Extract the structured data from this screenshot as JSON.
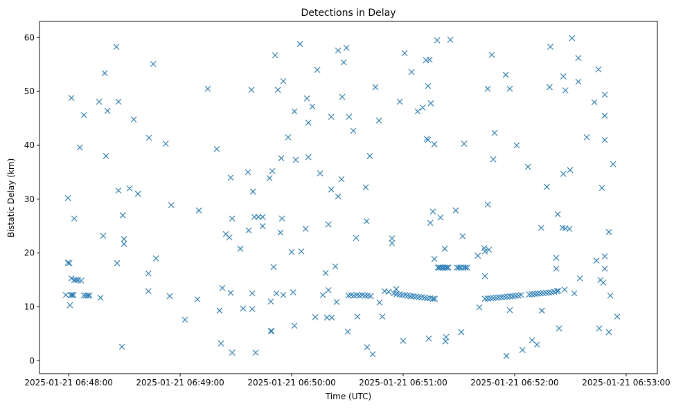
{
  "chart_data": {
    "type": "scatter",
    "title": "Detections in Delay",
    "xlabel": "Time (UTC)",
    "ylabel": "Bistatic Delay (km)",
    "x_origin": "2025-01-21 06:48:00",
    "x_unit": "seconds",
    "xlim": [
      -15.7,
      316.8
    ],
    "ylim": [
      -2.4,
      63
    ],
    "x_ticks": [
      {
        "value": 0,
        "label": "2025-01-21 06:48:00"
      },
      {
        "value": 60,
        "label": "2025-01-21 06:49:00"
      },
      {
        "value": 120,
        "label": "2025-01-21 06:50:00"
      },
      {
        "value": 180,
        "label": "2025-01-21 06:51:00"
      },
      {
        "value": 240,
        "label": "2025-01-21 06:52:00"
      },
      {
        "value": 300,
        "label": "2025-01-21 06:53:00"
      }
    ],
    "y_ticks": [
      {
        "value": 0,
        "label": "0"
      },
      {
        "value": 10,
        "label": "10"
      },
      {
        "value": 20,
        "label": "20"
      },
      {
        "value": 30,
        "label": "30"
      },
      {
        "value": 40,
        "label": "40"
      },
      {
        "value": 50,
        "label": "50"
      },
      {
        "value": 60,
        "label": "60"
      }
    ],
    "grid": false,
    "marker": "x",
    "color": "#1f77b4",
    "points": [
      [
        -0.4,
        30.2
      ],
      [
        -0.4,
        18.2
      ],
      [
        0.4,
        18.1
      ],
      [
        -1.5,
        12.2
      ],
      [
        1.1,
        12.2
      ],
      [
        1.9,
        12.2
      ],
      [
        2.6,
        12.2
      ],
      [
        0.7,
        10.3
      ],
      [
        1.5,
        15.3
      ],
      [
        3.0,
        15.0
      ],
      [
        4.1,
        15.0
      ],
      [
        5.2,
        15.0
      ],
      [
        6.7,
        14.9
      ],
      [
        1.5,
        48.8
      ],
      [
        3.0,
        26.4
      ],
      [
        6.0,
        39.6
      ],
      [
        8.2,
        45.6
      ],
      [
        8.2,
        12.1
      ],
      [
        9.3,
        12.1
      ],
      [
        10.4,
        12.1
      ],
      [
        11.2,
        12.1
      ],
      [
        16.4,
        48.1
      ],
      [
        17.1,
        11.7
      ],
      [
        18.6,
        23.2
      ],
      [
        19.4,
        53.4
      ],
      [
        20.1,
        38.0
      ],
      [
        20.9,
        46.4
      ],
      [
        25.7,
        58.3
      ],
      [
        26.8,
        48.1
      ],
      [
        26.1,
        18.1
      ],
      [
        26.8,
        31.6
      ],
      [
        29.1,
        27.0
      ],
      [
        29.8,
        22.6
      ],
      [
        29.8,
        21.7
      ],
      [
        28.7,
        2.6
      ],
      [
        32.8,
        32.0
      ],
      [
        35.0,
        44.8
      ],
      [
        37.3,
        31.0
      ],
      [
        43.2,
        41.4
      ],
      [
        42.9,
        16.2
      ],
      [
        42.9,
        12.9
      ],
      [
        45.5,
        55.1
      ],
      [
        47.0,
        19.0
      ],
      [
        52.2,
        40.3
      ],
      [
        54.4,
        12.0
      ],
      [
        55.2,
        28.9
      ],
      [
        62.6,
        7.6
      ],
      [
        69.3,
        11.4
      ],
      [
        70.1,
        27.9
      ],
      [
        74.9,
        50.5
      ],
      [
        79.7,
        39.3
      ],
      [
        81.2,
        9.3
      ],
      [
        82.0,
        3.2
      ],
      [
        82.7,
        13.5
      ],
      [
        84.6,
        23.5
      ],
      [
        86.5,
        22.9
      ],
      [
        87.2,
        34.0
      ],
      [
        87.2,
        12.6
      ],
      [
        88.0,
        1.5
      ],
      [
        88.0,
        26.4
      ],
      [
        92.4,
        20.8
      ],
      [
        93.9,
        9.7
      ],
      [
        96.5,
        35.0
      ],
      [
        96.9,
        24.2
      ],
      [
        98.4,
        50.3
      ],
      [
        98.8,
        12.5
      ],
      [
        98.8,
        9.6
      ],
      [
        99.2,
        31.4
      ],
      [
        99.9,
        26.7
      ],
      [
        100.6,
        1.5
      ],
      [
        102.1,
        26.7
      ],
      [
        104.4,
        26.7
      ],
      [
        104.4,
        25.0
      ],
      [
        108.1,
        33.9
      ],
      [
        108.8,
        11.0
      ],
      [
        108.8,
        5.5
      ],
      [
        109.2,
        5.5
      ],
      [
        109.6,
        35.2
      ],
      [
        110.3,
        17.4
      ],
      [
        111.1,
        56.7
      ],
      [
        111.8,
        12.5
      ],
      [
        112.6,
        50.3
      ],
      [
        114.0,
        23.8
      ],
      [
        114.4,
        37.6
      ],
      [
        114.8,
        26.4
      ],
      [
        115.5,
        12.2
      ],
      [
        115.5,
        51.9
      ],
      [
        118.1,
        41.5
      ],
      [
        120.8,
        12.7
      ],
      [
        121.5,
        46.3
      ],
      [
        121.5,
        6.5
      ],
      [
        122.2,
        37.3
      ],
      [
        124.5,
        58.8
      ],
      [
        125.2,
        20.3
      ],
      [
        120.0,
        20.2
      ],
      [
        127.5,
        24.5
      ],
      [
        128.2,
        48.7
      ],
      [
        129.0,
        37.8
      ],
      [
        129.0,
        44.2
      ],
      [
        131.2,
        47.2
      ],
      [
        132.7,
        8.1
      ],
      [
        133.8,
        54.0
      ],
      [
        135.3,
        34.8
      ],
      [
        136.8,
        12.2
      ],
      [
        138.3,
        16.3
      ],
      [
        139.8,
        13.1
      ],
      [
        139.8,
        25.3
      ],
      [
        139.0,
        8.0
      ],
      [
        141.3,
        45.3
      ],
      [
        141.3,
        31.8
      ],
      [
        141.6,
        8.0
      ],
      [
        143.5,
        17.5
      ],
      [
        144.2,
        10.9
      ],
      [
        145.0,
        57.6
      ],
      [
        145.0,
        30.5
      ],
      [
        146.8,
        33.7
      ],
      [
        147.2,
        49.0
      ],
      [
        148.0,
        55.4
      ],
      [
        149.5,
        58.1
      ],
      [
        150.2,
        5.4
      ],
      [
        150.9,
        45.3
      ],
      [
        153.2,
        42.7
      ],
      [
        154.7,
        22.8
      ],
      [
        155.4,
        8.2
      ],
      [
        150.5,
        12.1
      ],
      [
        152.0,
        12.2
      ],
      [
        153.5,
        12.1
      ],
      [
        155.0,
        12.2
      ],
      [
        156.5,
        12.1
      ],
      [
        158.0,
        12.2
      ],
      [
        159.5,
        12.1
      ],
      [
        161.0,
        12.1
      ],
      [
        162.5,
        12.0
      ],
      [
        160.3,
        25.9
      ],
      [
        160.6,
        2.5
      ],
      [
        159.9,
        32.2
      ],
      [
        162.1,
        38.0
      ],
      [
        163.6,
        1.2
      ],
      [
        165.1,
        50.8
      ],
      [
        167.0,
        44.6
      ],
      [
        167.3,
        10.8
      ],
      [
        168.8,
        8.2
      ],
      [
        170.0,
        12.9
      ],
      [
        172.2,
        12.8
      ],
      [
        174.0,
        22.7
      ],
      [
        174.0,
        21.8
      ],
      [
        176.3,
        13.3
      ],
      [
        178.2,
        48.1
      ],
      [
        180.0,
        3.7
      ],
      [
        180.8,
        57.1
      ],
      [
        184.5,
        53.6
      ],
      [
        187.8,
        46.3
      ],
      [
        190.5,
        47.0
      ],
      [
        192.3,
        55.8
      ],
      [
        192.7,
        41.2
      ],
      [
        193.4,
        41.0
      ],
      [
        193.4,
        51.0
      ],
      [
        193.8,
        4.1
      ],
      [
        194.2,
        55.9
      ],
      [
        194.9,
        47.8
      ],
      [
        194.6,
        25.6
      ],
      [
        196.0,
        27.7
      ],
      [
        196.8,
        18.9
      ],
      [
        196.8,
        40.2
      ],
      [
        198.3,
        59.5
      ],
      [
        200.1,
        26.6
      ],
      [
        202.4,
        20.8
      ],
      [
        202.8,
        3.6
      ],
      [
        203.1,
        4.4
      ],
      [
        205.4,
        59.6
      ],
      [
        208.3,
        27.9
      ],
      [
        211.3,
        5.3
      ],
      [
        212.0,
        23.1
      ],
      [
        212.8,
        40.3
      ],
      [
        175.0,
        12.5
      ],
      [
        176.5,
        12.4
      ],
      [
        178.0,
        12.3
      ],
      [
        179.5,
        12.2
      ],
      [
        181.0,
        12.2
      ],
      [
        182.5,
        12.1
      ],
      [
        184.0,
        12.0
      ],
      [
        185.5,
        12.0
      ],
      [
        187.0,
        11.9
      ],
      [
        188.5,
        11.8
      ],
      [
        190.0,
        11.8
      ],
      [
        191.5,
        11.7
      ],
      [
        193.0,
        11.6
      ],
      [
        194.5,
        11.6
      ],
      [
        196.0,
        11.5
      ],
      [
        197.0,
        11.5
      ],
      [
        198.7,
        17.3
      ],
      [
        199.5,
        17.3
      ],
      [
        200.5,
        17.3
      ],
      [
        201.5,
        17.3
      ],
      [
        202.5,
        17.3
      ],
      [
        203.5,
        17.3
      ],
      [
        204.3,
        17.3
      ],
      [
        209.0,
        17.3
      ],
      [
        210.0,
        17.3
      ],
      [
        211.0,
        17.3
      ],
      [
        212.5,
        17.3
      ],
      [
        213.5,
        17.3
      ],
      [
        214.5,
        17.3
      ],
      [
        220.2,
        19.5
      ],
      [
        221.0,
        9.9
      ],
      [
        224.0,
        15.7
      ],
      [
        224.0,
        20.3
      ],
      [
        223.6,
        20.9
      ],
      [
        225.5,
        50.5
      ],
      [
        225.5,
        29.0
      ],
      [
        226.2,
        20.6
      ],
      [
        227.7,
        56.8
      ],
      [
        228.5,
        37.4
      ],
      [
        229.2,
        42.3
      ],
      [
        235.2,
        53.1
      ],
      [
        235.6,
        0.9
      ],
      [
        237.4,
        50.5
      ],
      [
        237.4,
        9.4
      ],
      [
        241.1,
        40.0
      ],
      [
        244.2,
        2.0
      ],
      [
        247.2,
        36.0
      ],
      [
        249.4,
        3.8
      ],
      [
        252.0,
        3.0
      ],
      [
        254.3,
        24.7
      ],
      [
        254.7,
        9.3
      ],
      [
        257.3,
        32.3
      ],
      [
        258.8,
        50.8
      ],
      [
        259.2,
        58.3
      ],
      [
        262.4,
        19.1
      ],
      [
        262.4,
        17.1
      ],
      [
        263.2,
        27.2
      ],
      [
        263.9,
        6.0
      ],
      [
        265.8,
        24.7
      ],
      [
        266.2,
        34.7
      ],
      [
        266.2,
        52.8
      ],
      [
        266.9,
        13.2
      ],
      [
        267.3,
        24.6
      ],
      [
        267.3,
        50.2
      ],
      [
        269.5,
        24.5
      ],
      [
        269.8,
        35.4
      ],
      [
        270.9,
        59.9
      ],
      [
        272.1,
        12.5
      ],
      [
        274.3,
        56.2
      ],
      [
        274.3,
        51.8
      ],
      [
        275.1,
        15.3
      ],
      [
        278.8,
        41.5
      ],
      [
        282.9,
        48.0
      ],
      [
        284.0,
        18.6
      ],
      [
        285.1,
        54.1
      ],
      [
        285.5,
        6.0
      ],
      [
        286.2,
        15.0
      ],
      [
        287.0,
        32.1
      ],
      [
        287.7,
        14.5
      ],
      [
        288.5,
        19.4
      ],
      [
        288.5,
        17.1
      ],
      [
        288.5,
        49.4
      ],
      [
        288.5,
        41.0
      ],
      [
        288.5,
        45.5
      ],
      [
        290.7,
        5.3
      ],
      [
        290.7,
        23.9
      ],
      [
        291.5,
        12.1
      ],
      [
        293.0,
        36.5
      ],
      [
        295.2,
        8.2
      ],
      [
        224.0,
        11.5
      ],
      [
        225.5,
        11.55
      ],
      [
        227.0,
        11.6
      ],
      [
        228.5,
        11.65
      ],
      [
        230.0,
        11.7
      ],
      [
        231.5,
        11.75
      ],
      [
        233.0,
        11.8
      ],
      [
        234.5,
        11.85
      ],
      [
        236.0,
        11.9
      ],
      [
        237.5,
        11.95
      ],
      [
        239.0,
        12.0
      ],
      [
        240.5,
        12.05
      ],
      [
        242.0,
        12.1
      ],
      [
        243.5,
        12.2
      ],
      [
        247.8,
        12.3
      ],
      [
        249.3,
        12.35
      ],
      [
        250.8,
        12.4
      ],
      [
        252.3,
        12.45
      ],
      [
        253.8,
        12.5
      ],
      [
        255.3,
        12.55
      ],
      [
        256.8,
        12.6
      ],
      [
        258.3,
        12.65
      ],
      [
        259.8,
        12.7
      ],
      [
        261.3,
        12.8
      ],
      [
        262.8,
        12.9
      ],
      [
        263.5,
        13.0
      ]
    ]
  }
}
